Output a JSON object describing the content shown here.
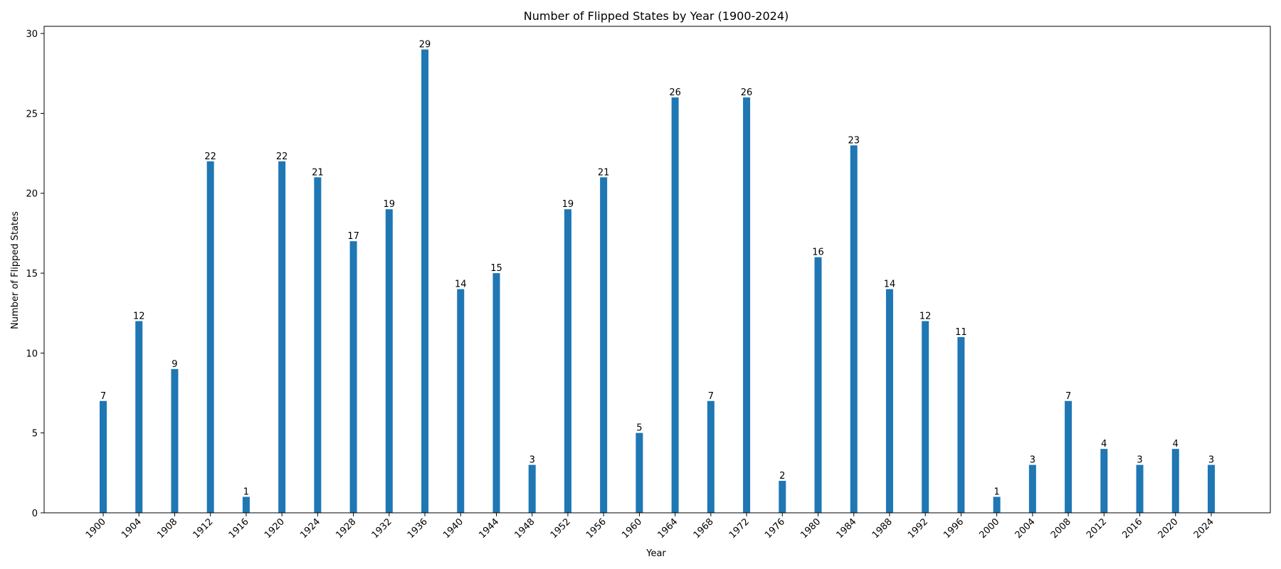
{
  "chart_data": {
    "type": "bar",
    "title": "Number of Flipped States by Year (1900-2024)",
    "xlabel": "Year",
    "ylabel": "Number of Flipped States",
    "categories": [
      "1900",
      "1904",
      "1908",
      "1912",
      "1916",
      "1920",
      "1924",
      "1928",
      "1932",
      "1936",
      "1940",
      "1944",
      "1948",
      "1952",
      "1956",
      "1960",
      "1964",
      "1968",
      "1972",
      "1976",
      "1980",
      "1984",
      "1988",
      "1992",
      "1996",
      "2000",
      "2004",
      "2008",
      "2012",
      "2016",
      "2020",
      "2024"
    ],
    "values": [
      7,
      12,
      9,
      22,
      1,
      22,
      21,
      17,
      19,
      29,
      14,
      15,
      3,
      19,
      21,
      5,
      26,
      7,
      26,
      2,
      16,
      23,
      14,
      12,
      11,
      1,
      3,
      7,
      4,
      3,
      4,
      3
    ],
    "ylim": [
      0,
      30.45
    ],
    "yticks": [
      "0",
      "5",
      "10",
      "15",
      "20",
      "25",
      "30"
    ],
    "bar_color": "#1f77b4",
    "grid": false,
    "legend": "none",
    "data_labels": true
  }
}
